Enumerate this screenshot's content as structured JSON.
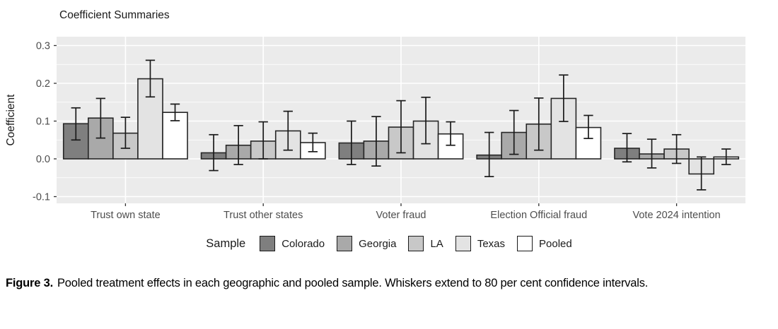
{
  "chart": {
    "title": "Coefficient Summaries"
  },
  "legend": {
    "title": "Sample"
  },
  "caption": {
    "label": "Figure 3.",
    "text": "Pooled treatment effects in each geographic and pooled sample. Whiskers extend to 80 per cent confidence intervals."
  },
  "chart_data": {
    "type": "bar",
    "title": "Coefficient Summaries",
    "xlabel": "",
    "ylabel": "Coefficient",
    "ylim": [
      -0.118,
      0.323
    ],
    "y_major_ticks": [
      -0.1,
      0.0,
      0.1,
      0.2,
      0.3
    ],
    "y_minor_ticks": [
      -0.05,
      0.05,
      0.15,
      0.25
    ],
    "grid": "white major and minor horizontal gridlines plus vertical major gridlines at category centers on gray panel",
    "legend_position": "bottom",
    "legend_title": "Sample",
    "error_bars": "whiskers extend to 80 per cent confidence intervals",
    "panel_bg": "#ebebeb",
    "bar_outline": "#262626",
    "categories": [
      "Trust own state",
      "Trust other states",
      "Voter fraud",
      "Election Official fraud",
      "Vote 2024 intention"
    ],
    "series": [
      {
        "name": "Colorado",
        "color": "#7f7f7f",
        "values": [
          0.093,
          0.016,
          0.042,
          0.01,
          0.028
        ],
        "ci_low": [
          0.05,
          -0.031,
          -0.015,
          -0.047,
          -0.008
        ],
        "ci_high": [
          0.135,
          0.064,
          0.1,
          0.07,
          0.067
        ]
      },
      {
        "name": "Georgia",
        "color": "#a9a9a9",
        "values": [
          0.108,
          0.036,
          0.047,
          0.07,
          0.013
        ],
        "ci_low": [
          0.055,
          -0.015,
          -0.019,
          0.012,
          -0.024
        ],
        "ci_high": [
          0.16,
          0.088,
          0.112,
          0.128,
          0.052
        ]
      },
      {
        "name": "LA",
        "color": "#c8c8c8",
        "values": [
          0.068,
          0.047,
          0.084,
          0.092,
          0.026
        ],
        "ci_low": [
          0.028,
          0.0,
          0.016,
          0.023,
          -0.012
        ],
        "ci_high": [
          0.11,
          0.098,
          0.154,
          0.161,
          0.064
        ]
      },
      {
        "name": "Texas",
        "color": "#e3e3e3",
        "values": [
          0.212,
          0.074,
          0.1,
          0.16,
          -0.04
        ],
        "ci_low": [
          0.164,
          0.023,
          0.04,
          0.099,
          -0.082
        ],
        "ci_high": [
          0.261,
          0.126,
          0.163,
          0.222,
          0.005
        ]
      },
      {
        "name": "Pooled",
        "color": "#ffffff",
        "values": [
          0.123,
          0.043,
          0.066,
          0.083,
          0.005
        ],
        "ci_low": [
          0.101,
          0.019,
          0.036,
          0.054,
          -0.015
        ],
        "ci_high": [
          0.145,
          0.068,
          0.098,
          0.115,
          0.026
        ]
      }
    ]
  }
}
